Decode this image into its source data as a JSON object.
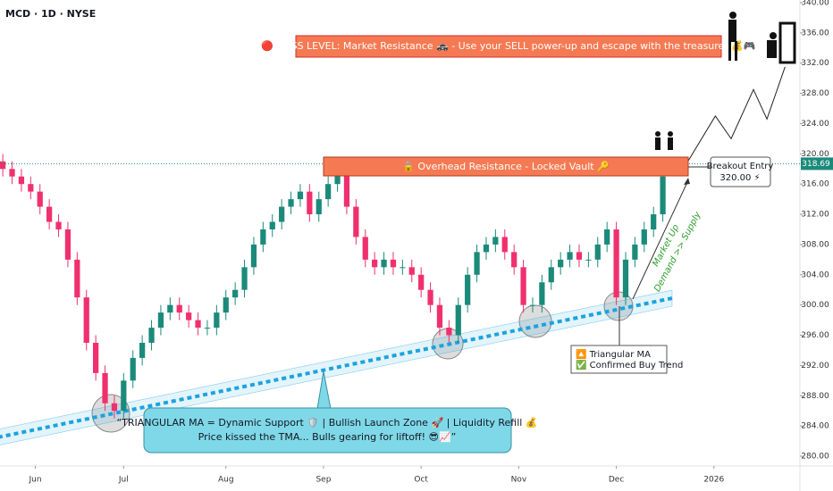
{
  "chart_data": {
    "type": "candlestick",
    "title": "MCD · 1D · NYSE",
    "x": [
      0,
      2,
      4,
      6,
      8,
      10,
      12,
      14,
      16,
      18,
      20,
      22,
      24,
      26,
      28,
      30,
      32,
      34,
      36,
      38,
      40,
      42,
      44,
      46,
      48,
      50,
      52,
      54,
      56,
      58,
      60,
      62,
      64,
      66,
      68,
      70,
      72,
      74,
      76,
      78,
      80,
      82,
      84,
      86,
      88,
      90,
      92,
      94,
      96,
      98,
      100,
      102,
      104,
      106,
      108,
      110,
      112,
      114,
      116,
      118,
      120,
      122,
      124,
      126,
      128,
      130,
      132,
      134,
      136,
      138,
      140,
      142
    ],
    "open": [
      319,
      318,
      317,
      316,
      315,
      313,
      311,
      310,
      306,
      301,
      295,
      291,
      287,
      286,
      290,
      293,
      295,
      297,
      299,
      300,
      299,
      298,
      297,
      297,
      299,
      301,
      302,
      305,
      308,
      310,
      311,
      313,
      314,
      315,
      312,
      314,
      316,
      318,
      313,
      309,
      306,
      305,
      306,
      305,
      305,
      304,
      302,
      300,
      297,
      296,
      300,
      304,
      307,
      308,
      309,
      307,
      305,
      300,
      300,
      303,
      305,
      306,
      307,
      306,
      306,
      308,
      310,
      301,
      306,
      308,
      310,
      312
    ],
    "high": [
      320,
      319,
      318,
      317,
      316,
      314,
      312,
      311,
      307,
      302,
      296,
      292,
      288,
      291,
      294,
      296,
      298,
      300,
      301,
      301,
      300,
      299,
      298,
      300,
      302,
      303,
      306,
      309,
      311,
      312,
      314,
      315,
      316,
      316,
      315,
      317,
      319,
      319,
      314,
      310,
      307,
      307,
      307,
      306,
      306,
      305,
      303,
      301,
      298,
      301,
      305,
      308,
      309,
      310,
      310,
      308,
      306,
      301,
      304,
      306,
      307,
      308,
      308,
      307,
      309,
      311,
      311,
      307,
      309,
      311,
      313,
      318
    ],
    "low": [
      317,
      316,
      315,
      314,
      312,
      310,
      309,
      305,
      300,
      294,
      290,
      286,
      285,
      285,
      289,
      292,
      294,
      296,
      298,
      298,
      297,
      296,
      296,
      296,
      298,
      300,
      301,
      304,
      307,
      309,
      310,
      312,
      313,
      311,
      311,
      313,
      315,
      312,
      308,
      305,
      304,
      304,
      304,
      304,
      303,
      301,
      299,
      296,
      295,
      295,
      299,
      303,
      306,
      307,
      306,
      304,
      299,
      299,
      299,
      302,
      304,
      305,
      305,
      305,
      305,
      307,
      300,
      300,
      305,
      307,
      309,
      311
    ],
    "close": [
      318,
      317,
      316,
      315,
      313,
      311,
      310,
      306,
      301,
      295,
      291,
      287,
      286,
      290,
      293,
      295,
      297,
      299,
      300,
      299,
      298,
      297,
      297,
      299,
      301,
      302,
      305,
      308,
      310,
      311,
      313,
      314,
      315,
      312,
      314,
      316,
      318,
      313,
      309,
      306,
      305,
      306,
      305,
      305,
      304,
      302,
      300,
      297,
      296,
      300,
      304,
      307,
      308,
      309,
      307,
      305,
      300,
      300,
      303,
      305,
      306,
      307,
      306,
      306,
      308,
      310,
      301,
      306,
      308,
      310,
      312,
      317
    ],
    "up_color": "#1b8a7a",
    "down_color": "#f0306e",
    "ma": {
      "x": [
        -1,
        144
      ],
      "values": [
        282.5,
        300.9
      ],
      "color": "#1ba3e0"
    },
    "projection": {
      "x": [
        147.5,
        153.3,
        156.7,
        161.5,
        164.4,
        168.3
      ],
      "values": [
        319.1,
        325.0,
        322.0,
        328.5,
        324.6,
        331.5
      ]
    },
    "last_price": {
      "value": 318.69,
      "label": "318.69"
    },
    "xlim": [
      -0.6,
      171.5
    ],
    "ylim": [
      278.7,
      340.35
    ],
    "xticks": [
      {
        "value": 7,
        "label": "Jun"
      },
      {
        "value": 26,
        "label": "Jul"
      },
      {
        "value": 48,
        "label": "Aug"
      },
      {
        "value": 69,
        "label": "Sep"
      },
      {
        "value": 90,
        "label": "Oct"
      },
      {
        "value": 111,
        "label": "Nov"
      },
      {
        "value": 132,
        "label": "Dec"
      },
      {
        "value": 153,
        "label": "2026"
      }
    ],
    "yticks": [
      {
        "value": 280,
        "label": "280.00"
      },
      {
        "value": 284,
        "label": "284.00"
      },
      {
        "value": 288,
        "label": "288.00"
      },
      {
        "value": 292,
        "label": "292.00"
      },
      {
        "value": 296,
        "label": "296.00"
      },
      {
        "value": 300,
        "label": "300.00"
      },
      {
        "value": 304,
        "label": "304.00"
      },
      {
        "value": 308,
        "label": "308.00"
      },
      {
        "value": 312,
        "label": "312.00"
      },
      {
        "value": 316,
        "label": "316.00"
      },
      {
        "value": 320,
        "label": "320.00"
      },
      {
        "value": 324,
        "label": "324.00"
      },
      {
        "value": 328,
        "label": "328.00"
      },
      {
        "value": 332,
        "label": "332.00"
      },
      {
        "value": 336,
        "label": "336.00"
      },
      {
        "value": 340,
        "label": "340.00"
      }
    ],
    "grid": false,
    "annotations": {
      "banner": "\" 🔴 BOSS LEVEL: Market Resistance 🚓 - Use your SELL power-up and escape with the treasure! 💰🎮 \"",
      "resistance": "🔒 Overhead Resistance - Locked Vault 🔑",
      "breakout_title": "Breakout Entry",
      "breakout_price": "320.00 ⚡",
      "trend_1": "Market Up",
      "trend_2": "Demand >> Supply",
      "ma_note_1": "🔼 Triangular MA",
      "ma_note_2": "✅ Confirmed Buy Trend",
      "callout_1": "“TRIANGULAR MA = Dynamic Support 🛡️ | Bullish Launch Zone 🚀 | Liquidity Refill 💰",
      "callout_2": "Price kissed the TMA... Bulls gearing for liftoff! 😎📈”"
    }
  }
}
